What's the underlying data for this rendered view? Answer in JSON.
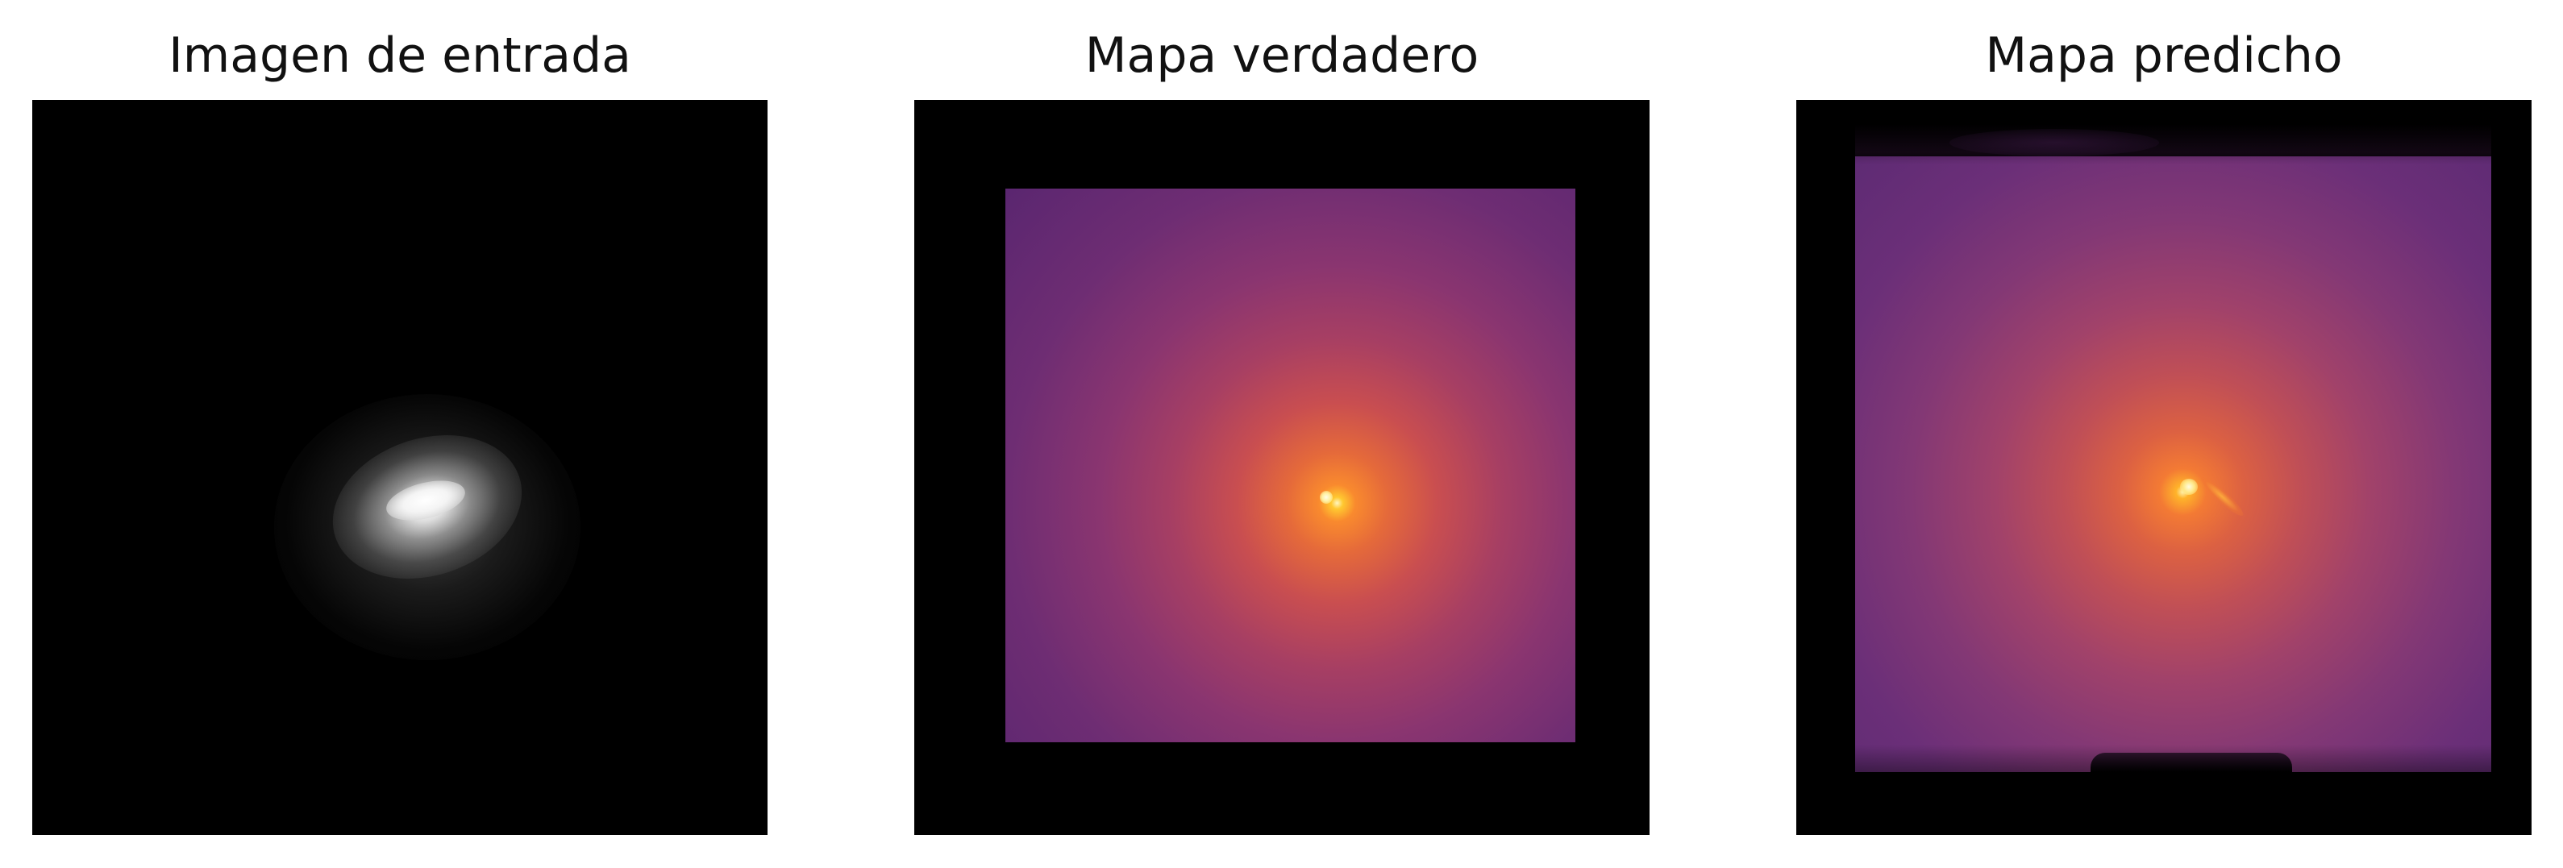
{
  "panels": [
    {
      "title": "Imagen de entrada"
    },
    {
      "title": "Mapa verdadero"
    },
    {
      "title": "Mapa predicho"
    }
  ],
  "colors": {
    "background": "#ffffff",
    "image_frame": "#000000",
    "input_cmap": "gray",
    "map_cmap": "inferno"
  }
}
